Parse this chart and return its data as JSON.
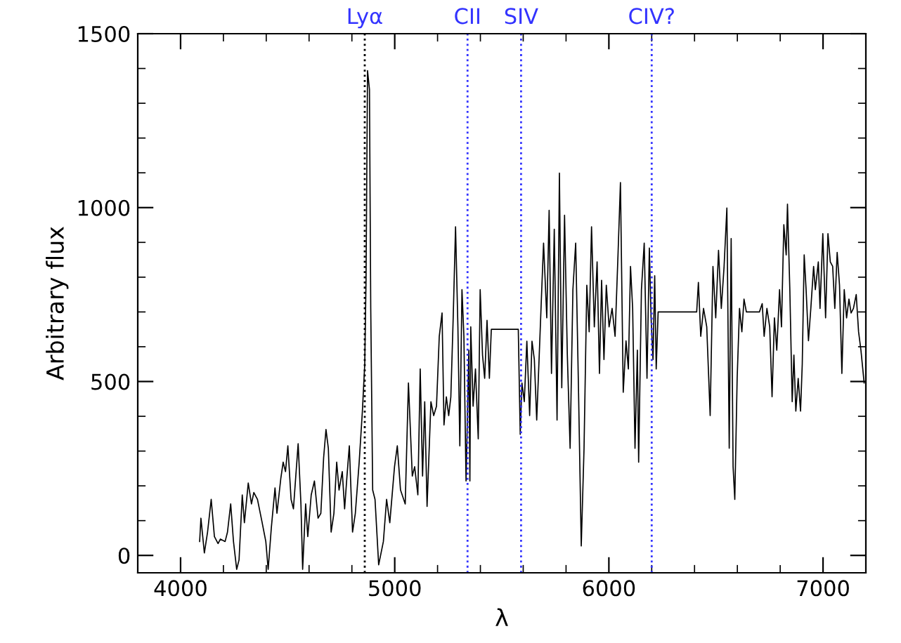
{
  "chart_data": {
    "type": "line",
    "xlabel": "λ",
    "ylabel": "Arbitrary flux",
    "xlim": [
      3800,
      7200
    ],
    "ylim": [
      -50,
      1500
    ],
    "xticks": [
      {
        "value": 3800,
        "label": null
      },
      4000,
      {
        "value": 4200,
        "label": null
      },
      {
        "value": 4400,
        "label": null
      },
      {
        "value": 4600,
        "label": null
      },
      {
        "value": 4800,
        "label": null
      },
      5000,
      {
        "value": 5200,
        "label": null
      },
      {
        "value": 5400,
        "label": null
      },
      {
        "value": 5600,
        "label": null
      },
      {
        "value": 5800,
        "label": null
      },
      6000,
      {
        "value": 6200,
        "label": null
      },
      {
        "value": 6400,
        "label": null
      },
      {
        "value": 6600,
        "label": null
      },
      {
        "value": 6800,
        "label": null
      },
      7000
    ],
    "yticks": [
      0,
      {
        "value": 100,
        "label": null
      },
      {
        "value": 200,
        "label": null
      },
      {
        "value": 300,
        "label": null
      },
      {
        "value": 400,
        "label": null
      },
      500,
      {
        "value": 600,
        "label": null
      },
      {
        "value": 700,
        "label": null
      },
      {
        "value": 800,
        "label": null
      },
      {
        "value": 900,
        "label": null
      },
      1000,
      {
        "value": 1100,
        "label": null
      },
      {
        "value": 1200,
        "label": null
      },
      {
        "value": 1300,
        "label": null
      },
      {
        "value": 1400,
        "label": null
      },
      1500
    ],
    "grid": false,
    "legend": false,
    "ref_lines": [
      {
        "axis": "x",
        "value": 4860,
        "label": "Lyα",
        "color": "#000000",
        "line_style": "dotted"
      },
      {
        "axis": "x",
        "value": 5340,
        "label": "CII",
        "color": "#3333ff",
        "line_style": "dotted"
      },
      {
        "axis": "x",
        "value": 5590,
        "label": "SIV",
        "color": "#3333ff",
        "line_style": "dotted"
      },
      {
        "axis": "x",
        "value": 6200,
        "label": "CIV?",
        "color": "#3333ff",
        "line_style": "dotted"
      }
    ],
    "series": [
      {
        "color": "#000000",
        "x": [
          4089,
          4095,
          4111,
          4126,
          4143,
          4158,
          4175,
          4186,
          4208,
          4219,
          4234,
          4247,
          4262,
          4273,
          4288,
          4298,
          4316,
          4331,
          4342,
          4359,
          4381,
          4398,
          4409,
          4424,
          4441,
          4450,
          4468,
          4479,
          4490,
          4501,
          4516,
          4527,
          4538,
          4549,
          4562,
          4570,
          4584,
          4594,
          4610,
          4625,
          4642,
          4655,
          4668,
          4679,
          4690,
          4703,
          4716,
          4729,
          4740,
          4755,
          4766,
          4777,
          4788,
          4803,
          4816,
          4834,
          4849,
          4860,
          4866,
          4873,
          4882,
          4888,
          4897,
          4908,
          4925,
          4947,
          4962,
          4977,
          4999,
          5012,
          5027,
          5049,
          5064,
          5082,
          5093,
          5108,
          5119,
          5130,
          5140,
          5151,
          5169,
          5182,
          5195,
          5208,
          5221,
          5230,
          5241,
          5252,
          5262,
          5273,
          5284,
          5295,
          5304,
          5314,
          5323,
          5333,
          5346,
          5351,
          5355,
          5366,
          5377,
          5390,
          5399,
          5410,
          5420,
          5431,
          5442,
          5451,
          5577,
          5586,
          5594,
          5605,
          5617,
          5630,
          5641,
          5652,
          5663,
          5674,
          5684,
          5695,
          5710,
          5721,
          5732,
          5745,
          5758,
          5769,
          5780,
          5793,
          5806,
          5819,
          5832,
          5845,
          5858,
          5871,
          5884,
          5897,
          5908,
          5919,
          5932,
          5945,
          5956,
          5966,
          5977,
          5988,
          6001,
          6015,
          6029,
          6043,
          6054,
          6067,
          6080,
          6091,
          6101,
          6111,
          6122,
          6133,
          6139,
          6152,
          6165,
          6178,
          6189,
          6197,
          6206,
          6214,
          6221,
          6230,
          6410,
          6418,
          6429,
          6442,
          6457,
          6473,
          6486,
          6499,
          6512,
          6525,
          6538,
          6551,
          6562,
          6571,
          6580,
          6588,
          6599,
          6610,
          6621,
          6631,
          6642,
          6703,
          6716,
          6725,
          6738,
          6751,
          6762,
          6773,
          6784,
          6797,
          6806,
          6817,
          6828,
          6834,
          6845,
          6856,
          6864,
          6873,
          6884,
          6895,
          6903,
          6912,
          6921,
          6932,
          6943,
          6956,
          6964,
          6978,
          6986,
          6999,
          7012,
          7023,
          7034,
          7045,
          7055,
          7066,
          7077,
          7088,
          7099,
          7110,
          7121,
          7131,
          7142,
          7155,
          7166,
          7177,
          7192
        ],
        "values": [
          40,
          107,
          7,
          67,
          161,
          54,
          34,
          47,
          40,
          67,
          148,
          40,
          -40,
          -13,
          174,
          94,
          208,
          148,
          181,
          161,
          94,
          40,
          -40,
          81,
          194,
          121,
          221,
          268,
          241,
          315,
          161,
          134,
          228,
          321,
          148,
          -40,
          148,
          54,
          174,
          214,
          107,
          121,
          281,
          362,
          308,
          67,
          121,
          268,
          188,
          241,
          134,
          228,
          315,
          67,
          121,
          268,
          415,
          550,
          791,
          1394,
          1340,
          710,
          188,
          161,
          -27,
          40,
          161,
          94,
          255,
          315,
          188,
          148,
          496,
          228,
          255,
          174,
          536,
          228,
          442,
          141,
          442,
          402,
          429,
          630,
          697,
          375,
          456,
          402,
          456,
          683,
          945,
          657,
          315,
          764,
          630,
          214,
          590,
          214,
          657,
          429,
          536,
          335,
          764,
          576,
          509,
          676,
          509,
          650,
          650,
          348,
          496,
          442,
          616,
          402,
          616,
          563,
          389,
          563,
          724,
          898,
          683,
          992,
          523,
          938,
          389,
          1099,
          482,
          978,
          576,
          308,
          764,
          898,
          482,
          27,
          308,
          777,
          643,
          945,
          657,
          844,
          523,
          791,
          563,
          777,
          657,
          710,
          630,
          871,
          1072,
          469,
          617,
          536,
          831,
          710,
          308,
          590,
          268,
          764,
          898,
          509,
          884,
          683,
          563,
          804,
          536,
          700,
          700,
          785,
          630,
          710,
          657,
          402,
          831,
          683,
          877,
          710,
          831,
          999,
          308,
          911,
          255,
          161,
          509,
          710,
          643,
          737,
          700,
          700,
          724,
          630,
          710,
          657,
          456,
          683,
          590,
          764,
          657,
          951,
          864,
          1010,
          764,
          442,
          576,
          415,
          509,
          415,
          550,
          864,
          764,
          617,
          710,
          831,
          764,
          844,
          710,
          925,
          683,
          925,
          844,
          831,
          710,
          871,
          777,
          523,
          764,
          683,
          737,
          697,
          710,
          750,
          643,
          590,
          496
        ]
      }
    ]
  }
}
